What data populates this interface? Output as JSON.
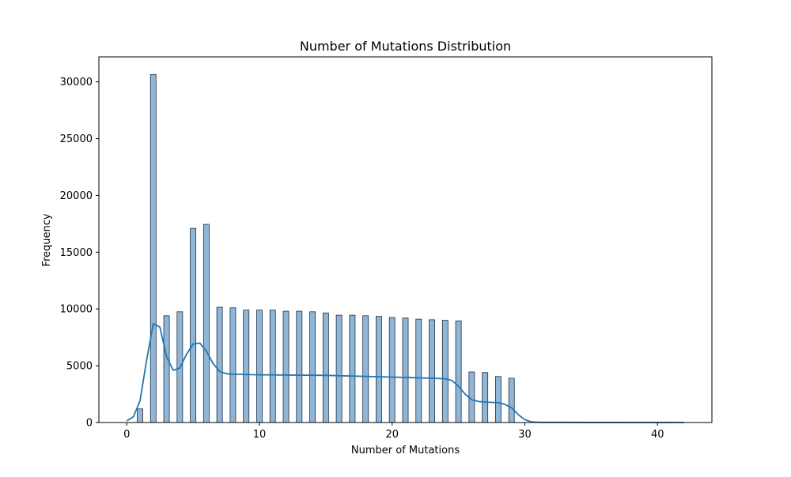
{
  "chart_data": {
    "type": "bar",
    "title": "Number of Mutations Distribution",
    "xlabel": "Number of Mutations",
    "ylabel": "Frequency",
    "xlim": [
      -2.1,
      44.1
    ],
    "ylim": [
      0,
      32200
    ],
    "x_ticks": [
      0,
      10,
      20,
      30,
      40
    ],
    "y_ticks": [
      0,
      5000,
      10000,
      15000,
      20000,
      25000,
      30000
    ],
    "bin_width": 0.42,
    "bars": [
      {
        "x": 1,
        "value": 1200
      },
      {
        "x": 2,
        "value": 30650
      },
      {
        "x": 3,
        "value": 9400
      },
      {
        "x": 4,
        "value": 9750
      },
      {
        "x": 5,
        "value": 17100
      },
      {
        "x": 6,
        "value": 17450
      },
      {
        "x": 7,
        "value": 10150
      },
      {
        "x": 8,
        "value": 10100
      },
      {
        "x": 9,
        "value": 9900
      },
      {
        "x": 10,
        "value": 9900
      },
      {
        "x": 11,
        "value": 9900
      },
      {
        "x": 12,
        "value": 9800
      },
      {
        "x": 13,
        "value": 9800
      },
      {
        "x": 14,
        "value": 9750
      },
      {
        "x": 15,
        "value": 9650
      },
      {
        "x": 16,
        "value": 9450
      },
      {
        "x": 17,
        "value": 9450
      },
      {
        "x": 18,
        "value": 9400
      },
      {
        "x": 19,
        "value": 9350
      },
      {
        "x": 20,
        "value": 9250
      },
      {
        "x": 21,
        "value": 9200
      },
      {
        "x": 22,
        "value": 9100
      },
      {
        "x": 23,
        "value": 9050
      },
      {
        "x": 24,
        "value": 9000
      },
      {
        "x": 25,
        "value": 8950
      },
      {
        "x": 26,
        "value": 4450
      },
      {
        "x": 27,
        "value": 4400
      },
      {
        "x": 28,
        "value": 4050
      },
      {
        "x": 29,
        "value": 3900
      }
    ],
    "kde": {
      "x": [
        0,
        0.5,
        1,
        1.5,
        2,
        2.5,
        3,
        3.5,
        4,
        4.5,
        5,
        5.5,
        6,
        6.5,
        7,
        7.5,
        8,
        10,
        15,
        20,
        23,
        24,
        24.5,
        25,
        25.5,
        26,
        26.5,
        27,
        28,
        28.5,
        29,
        29.5,
        30,
        30.5,
        31,
        35,
        42
      ],
      "y": [
        150,
        500,
        1900,
        5500,
        8700,
        8400,
        5800,
        4600,
        4800,
        6000,
        6900,
        7000,
        6300,
        5200,
        4500,
        4300,
        4250,
        4200,
        4150,
        4000,
        3900,
        3850,
        3700,
        3200,
        2500,
        2000,
        1850,
        1800,
        1750,
        1600,
        1300,
        700,
        250,
        60,
        20,
        5,
        0
      ]
    },
    "colors": {
      "bar_fill": "#8fb6d7",
      "bar_edge": "#1f2f3f",
      "kde_line": "#1f77b4",
      "axes": "#000000"
    },
    "grid": false,
    "legend": "none"
  }
}
